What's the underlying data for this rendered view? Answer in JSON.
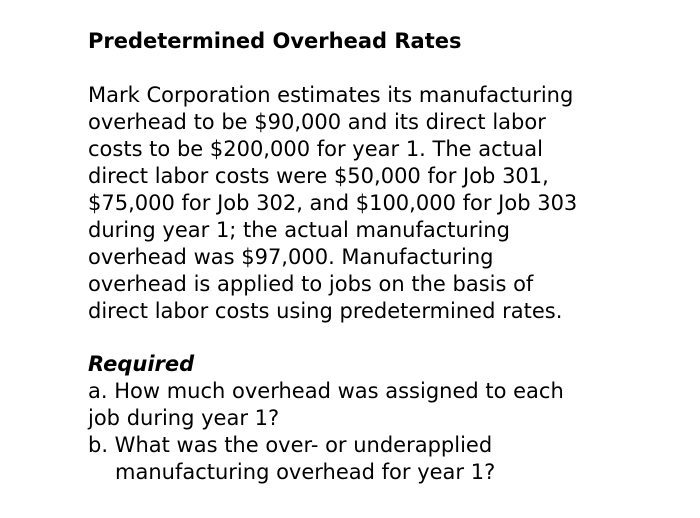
{
  "document": {
    "title": "Predetermined Overhead Rates",
    "paragraph_lines": [
      "Mark Corporation estimates its manufacturing",
      "overhead to be $90,000 and its direct labor",
      "costs to be $200,000 for year 1. The actual",
      "direct labor costs were $50,000 for Job 301,",
      "$75,000 for Job 302, and $100,000 for Job 303",
      "during year 1; the actual manufacturing",
      "overhead was $97,000. Manufacturing",
      "overhead is applied to jobs on the basis of",
      "direct labor costs using predetermined rates."
    ],
    "required_heading": "Required",
    "question_a": {
      "line1": "a. How much overhead was assigned to each",
      "line2": "job during year 1?"
    },
    "question_b": {
      "line1": "b. What was the over- or underapplied",
      "line2": "manufacturing overhead for year 1?"
    }
  }
}
